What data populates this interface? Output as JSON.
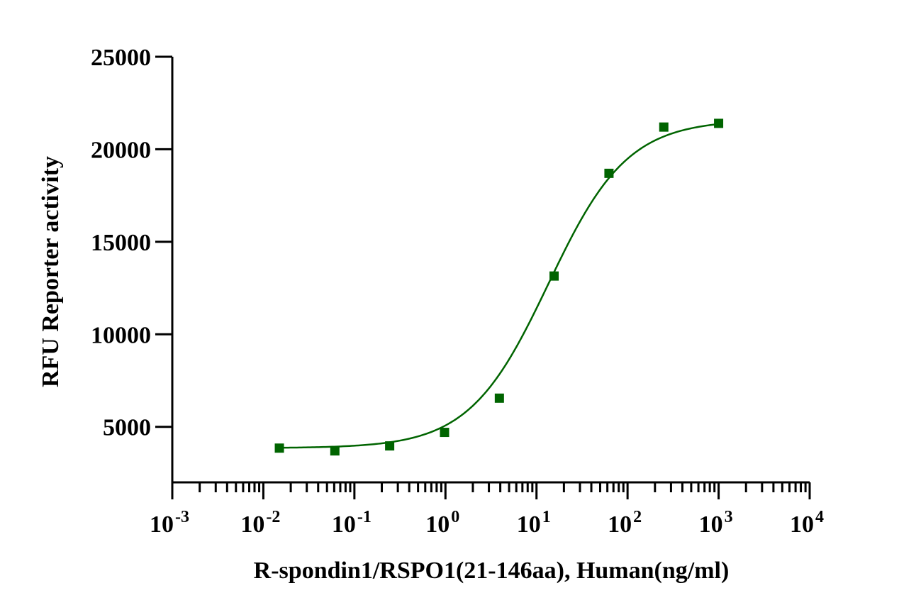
{
  "chart_data": {
    "type": "scatter",
    "title": "",
    "xlabel": "R-spondin1/RSPO1(21-146aa), Human(ng/ml)",
    "ylabel": "RFU Reporter activity",
    "x_scale": "log",
    "xlim": [
      0.001,
      10000
    ],
    "ylim": [
      2000,
      25000
    ],
    "grid": false,
    "legend": "none",
    "x_ticks": [
      {
        "base": "10",
        "exp": "-3",
        "value": 0.001
      },
      {
        "base": "10",
        "exp": "-2",
        "value": 0.01
      },
      {
        "base": "10",
        "exp": "-1",
        "value": 0.1
      },
      {
        "base": "10",
        "exp": "0",
        "value": 1
      },
      {
        "base": "10",
        "exp": "1",
        "value": 10
      },
      {
        "base": "10",
        "exp": "2",
        "value": 100
      },
      {
        "base": "10",
        "exp": "3",
        "value": 1000
      },
      {
        "base": "10",
        "exp": "4",
        "value": 10000
      }
    ],
    "y_ticks": [
      {
        "label": "5000",
        "value": 5000
      },
      {
        "label": "10000",
        "value": 10000
      },
      {
        "label": "15000",
        "value": 15000
      },
      {
        "label": "20000",
        "value": 20000
      },
      {
        "label": "25000",
        "value": 25000
      }
    ],
    "series": [
      {
        "color": "#006400",
        "marker": "square",
        "x": [
          0.015,
          0.061,
          0.244,
          0.977,
          3.91,
          15.6,
          62.5,
          250,
          1000
        ],
        "y": [
          3850,
          3700,
          3970,
          4700,
          6550,
          13150,
          18700,
          21200,
          21400
        ],
        "fit": {
          "model": "4PL",
          "bottom": 3850,
          "top": 21600,
          "ec50": 13.5,
          "hill": 1.0
        }
      }
    ]
  }
}
